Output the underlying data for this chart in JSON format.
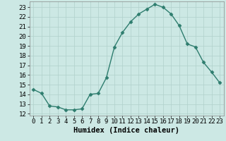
{
  "x": [
    0,
    1,
    2,
    3,
    4,
    5,
    6,
    7,
    8,
    9,
    10,
    11,
    12,
    13,
    14,
    15,
    16,
    17,
    18,
    19,
    20,
    21,
    22,
    23
  ],
  "y": [
    14.5,
    14.1,
    12.8,
    12.7,
    12.4,
    12.4,
    12.5,
    14.0,
    14.1,
    15.7,
    18.9,
    20.4,
    21.5,
    22.3,
    22.8,
    23.3,
    23.0,
    22.3,
    21.1,
    19.2,
    18.9,
    17.3,
    16.3,
    15.2
  ],
  "line_color": "#2e7d6e",
  "marker": "D",
  "markersize": 2.5,
  "linewidth": 1.0,
  "bg_color": "#cce8e4",
  "grid_color": "#b0d0cb",
  "xlabel": "Humidex (Indice chaleur)",
  "xlim": [
    -0.5,
    23.5
  ],
  "ylim": [
    11.8,
    23.6
  ],
  "yticks": [
    12,
    13,
    14,
    15,
    16,
    17,
    18,
    19,
    20,
    21,
    22,
    23
  ],
  "xticks": [
    0,
    1,
    2,
    3,
    4,
    5,
    6,
    7,
    8,
    9,
    10,
    11,
    12,
    13,
    14,
    15,
    16,
    17,
    18,
    19,
    20,
    21,
    22,
    23
  ],
  "tick_fontsize": 6.5,
  "label_fontsize": 7.5
}
